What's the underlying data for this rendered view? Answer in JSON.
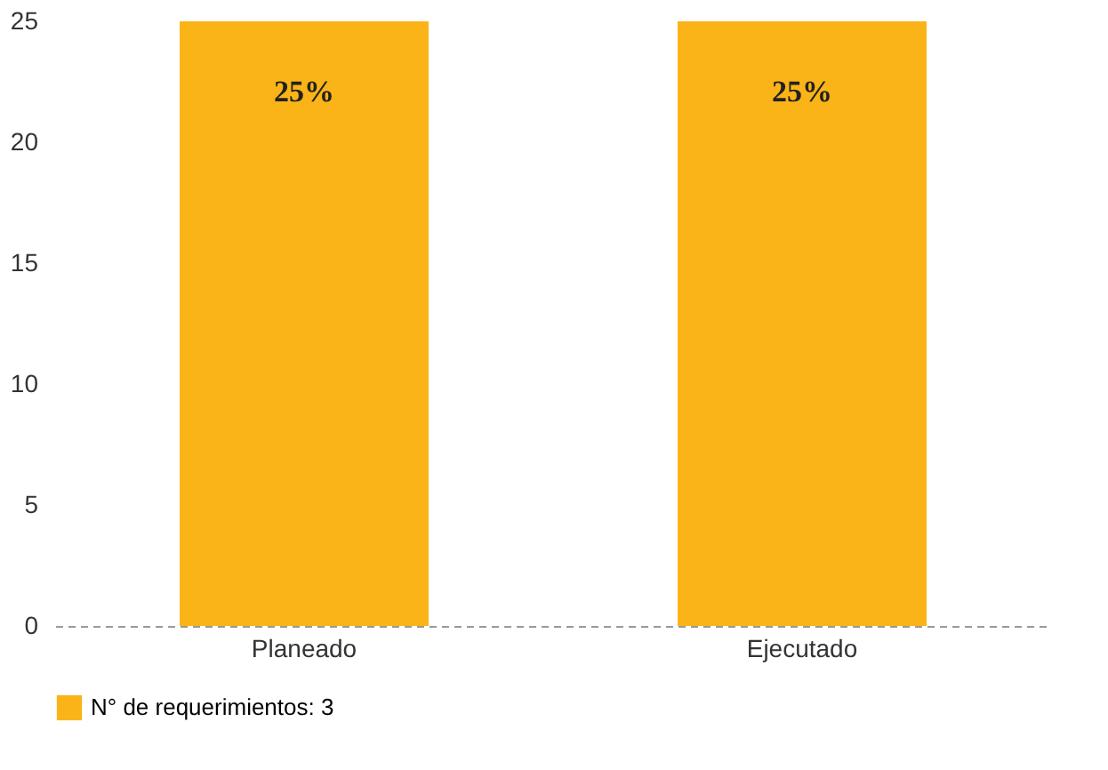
{
  "chart_data": {
    "type": "bar",
    "categories": [
      "Planeado",
      "Ejecutado"
    ],
    "series": [
      {
        "name": "N° de requerimientos: 3",
        "color": "#fbb417",
        "values": [
          25,
          25
        ],
        "value_labels": [
          "25%",
          "25%"
        ]
      }
    ],
    "ylim": [
      0,
      25
    ],
    "yticks": [
      0,
      5,
      10,
      15,
      20,
      25
    ],
    "grid": false,
    "legend": "bottom"
  }
}
